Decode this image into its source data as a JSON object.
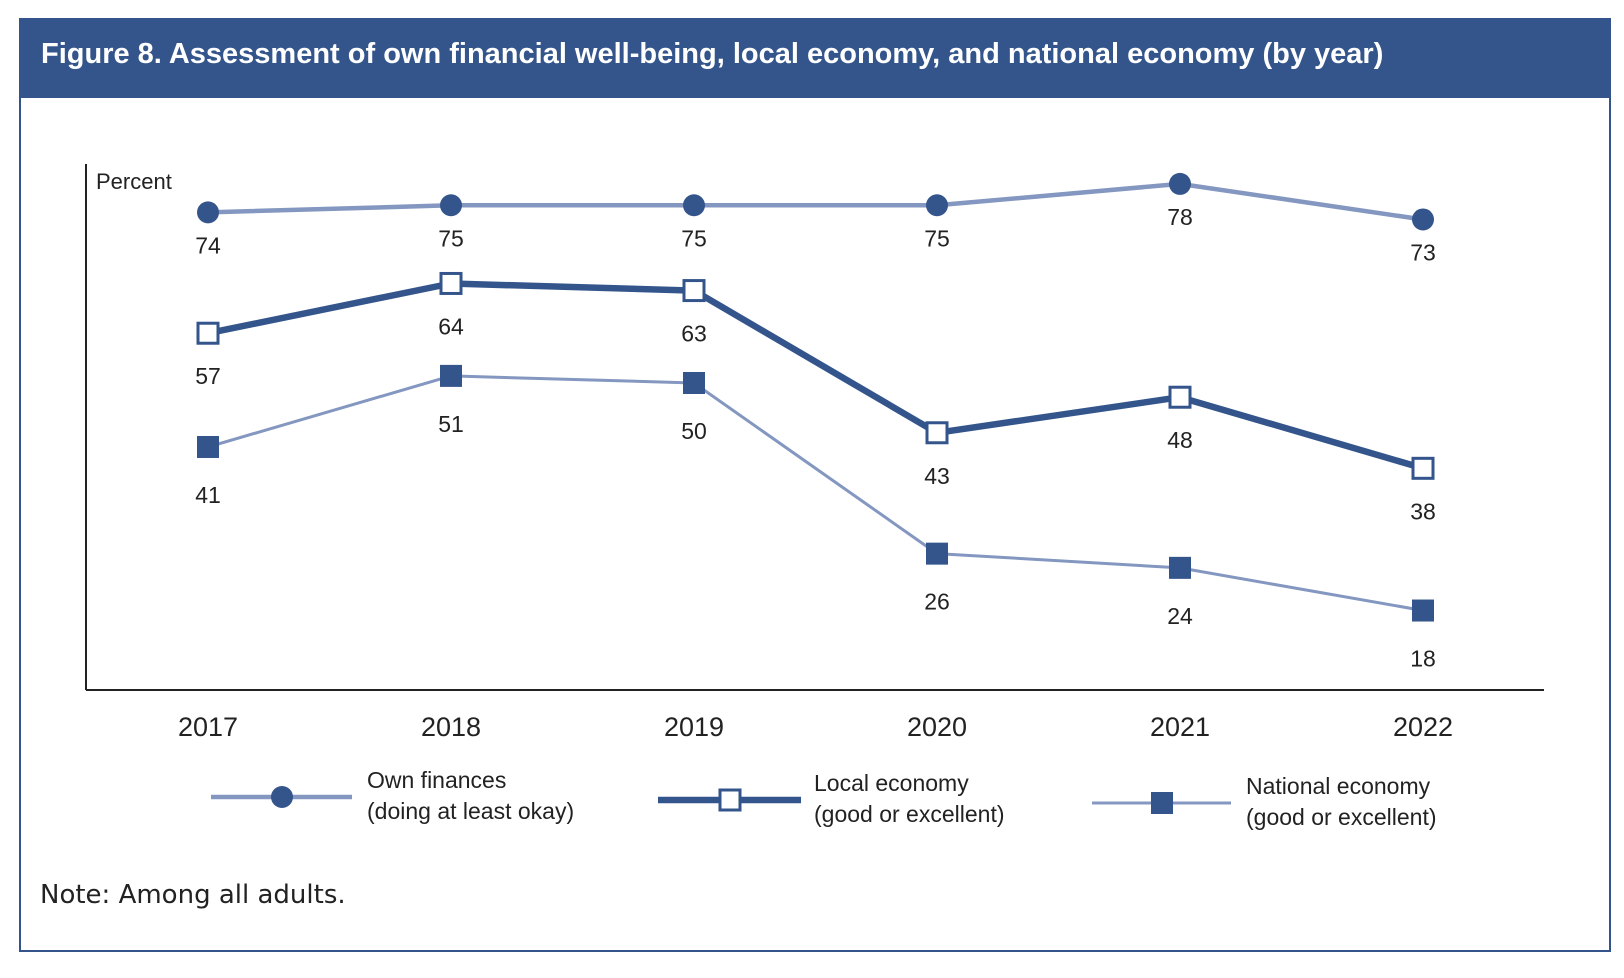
{
  "figure": {
    "title": "Figure 8. Assessment of own financial well-being, local economy, and national economy (by year)",
    "note": "Note: Among all adults."
  },
  "colors": {
    "header_bg": "#34558b",
    "dark_series": "#34558b",
    "light_series": "#8497c0",
    "text": "#222222"
  },
  "chart_data": {
    "type": "line",
    "ylabel": "Percent",
    "xlabel": "",
    "ylim": [
      0,
      90
    ],
    "grid": false,
    "legend_position": "bottom",
    "categories": [
      "2017",
      "2018",
      "2019",
      "2020",
      "2021",
      "2022"
    ],
    "series": [
      {
        "name": "Own finances (doing at least okay)",
        "legend_lines": [
          "Own finances",
          "(doing at least okay)"
        ],
        "values": [
          74,
          75,
          75,
          75,
          78,
          73
        ],
        "marker": "filled-circle",
        "line_style": "medium-light"
      },
      {
        "name": "Local economy (good or excellent)",
        "legend_lines": [
          "Local economy",
          "(good or excellent)"
        ],
        "values": [
          57,
          64,
          63,
          43,
          48,
          38
        ],
        "marker": "open-square",
        "line_style": "thick-dark"
      },
      {
        "name": "National economy (good or excellent)",
        "legend_lines": [
          "National economy",
          "(good or excellent)"
        ],
        "values": [
          41,
          51,
          50,
          26,
          24,
          18
        ],
        "marker": "filled-square",
        "line_style": "thin-light"
      }
    ]
  }
}
